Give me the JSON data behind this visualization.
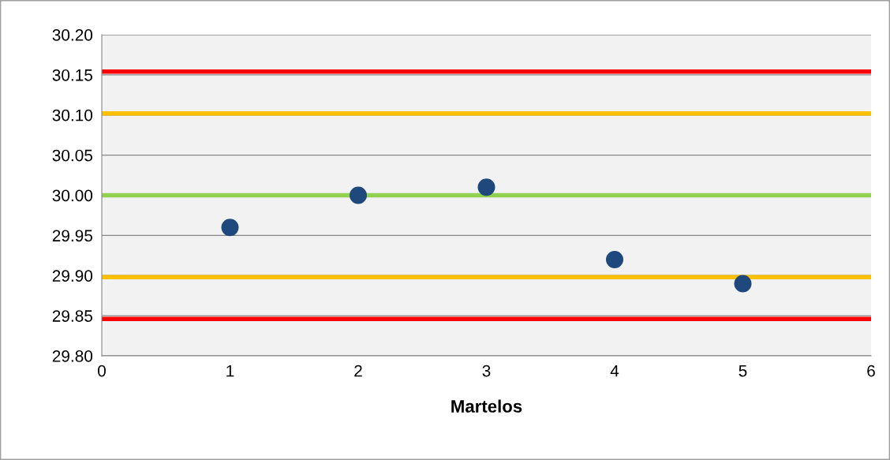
{
  "chart_data": {
    "type": "scatter",
    "xlabel": "Martelos",
    "x": [
      1,
      2,
      3,
      4,
      5
    ],
    "series": [
      {
        "color": "#1f497d",
        "values": [
          29.96,
          30.0,
          30.01,
          29.92,
          29.89
        ]
      }
    ],
    "xlim": [
      0,
      6
    ],
    "xticks": [
      0,
      1,
      2,
      3,
      4,
      5,
      6
    ],
    "ylim": [
      29.8,
      30.2
    ],
    "yticks": [
      {
        "value": 29.8,
        "label": "29.80"
      },
      {
        "value": 29.85,
        "label": "29.85"
      },
      {
        "value": 29.9,
        "label": "29.90"
      },
      {
        "value": 29.95,
        "label": "29.95"
      },
      {
        "value": 30.0,
        "label": "30.00"
      },
      {
        "value": 30.05,
        "label": "30.05"
      },
      {
        "value": 30.1,
        "label": "30.10"
      },
      {
        "value": 30.15,
        "label": "30.15"
      },
      {
        "value": 30.2,
        "label": "30.20"
      }
    ],
    "ref_lines": [
      {
        "axis": "y",
        "value": 30.154,
        "color": "#ff0000"
      },
      {
        "axis": "y",
        "value": 30.102,
        "color": "#ffc000"
      },
      {
        "axis": "y",
        "value": 30.0,
        "color": "#92d050"
      },
      {
        "axis": "y",
        "value": 29.898,
        "color": "#ffc000"
      },
      {
        "axis": "y",
        "value": 29.846,
        "color": "#ff0000"
      }
    ],
    "grid": "y",
    "marker": "circle"
  }
}
